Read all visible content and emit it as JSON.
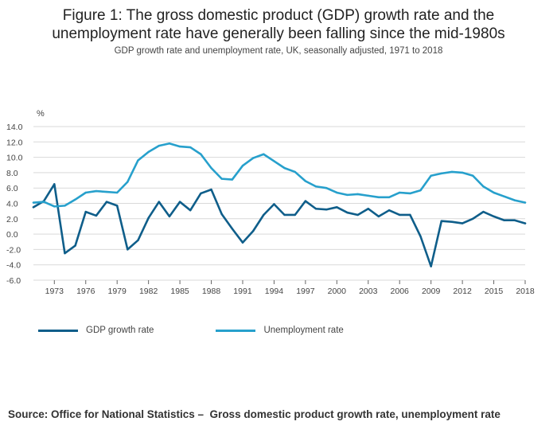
{
  "header": {
    "title_line1": "Figure 1: The gross domestic product (GDP) growth rate and the",
    "title_line2": "unemployment rate have generally been falling since the mid-1980s",
    "subtitle": "GDP growth rate and unemployment rate, UK, seasonally adjusted, 1971 to 2018"
  },
  "footer": {
    "source": "Source: Office for National Statistics –  Gross domestic product growth rate, unemployment rate"
  },
  "chart_data": {
    "type": "line",
    "title": "Figure 1: The gross domestic product (GDP) growth rate and the unemployment rate have generally been falling since the mid-1980s",
    "subtitle": "GDP growth rate and unemployment rate, UK, seasonally adjusted, 1971 to 2018",
    "ylabel": "%",
    "xlabel": "",
    "ylim": [
      -6.0,
      14.0
    ],
    "yticks": [
      -6.0,
      -4.0,
      -2.0,
      0.0,
      2.0,
      4.0,
      6.0,
      8.0,
      10.0,
      12.0,
      14.0
    ],
    "ytick_labels": [
      "-6.0",
      "-4.0",
      "-2.0",
      "0.0",
      "2.0",
      "4.0",
      "6.0",
      "8.0",
      "10.0",
      "12.0",
      "14.0"
    ],
    "xlim": [
      1971,
      2018
    ],
    "xtick_labels": [
      "1973",
      "1976",
      "1979",
      "1982",
      "1985",
      "1988",
      "1991",
      "1994",
      "1997",
      "2000",
      "2003",
      "2006",
      "2009",
      "2012",
      "2015",
      "2018"
    ],
    "grid": "horizontal",
    "legend_position": "bottom-left",
    "x": [
      1971,
      1972,
      1973,
      1974,
      1975,
      1976,
      1977,
      1978,
      1979,
      1980,
      1981,
      1982,
      1983,
      1984,
      1985,
      1986,
      1987,
      1988,
      1989,
      1990,
      1991,
      1992,
      1993,
      1994,
      1995,
      1996,
      1997,
      1998,
      1999,
      2000,
      2001,
      2002,
      2003,
      2004,
      2005,
      2006,
      2007,
      2008,
      2009,
      2010,
      2011,
      2012,
      2013,
      2014,
      2015,
      2016,
      2017,
      2018
    ],
    "series": [
      {
        "name": "GDP growth rate",
        "color": "#0f5e8a",
        "values": [
          3.5,
          4.3,
          6.5,
          -2.5,
          -1.5,
          2.9,
          2.4,
          4.2,
          3.7,
          -2.0,
          -0.8,
          2.1,
          4.2,
          2.3,
          4.2,
          3.1,
          5.3,
          5.8,
          2.6,
          0.7,
          -1.1,
          0.4,
          2.5,
          3.9,
          2.5,
          2.5,
          4.3,
          3.3,
          3.2,
          3.5,
          2.8,
          2.5,
          3.3,
          2.3,
          3.1,
          2.5,
          2.5,
          -0.3,
          -4.2,
          1.7,
          1.6,
          1.4,
          2.0,
          2.9,
          2.3,
          1.8,
          1.8,
          1.4
        ]
      },
      {
        "name": "Unemployment rate",
        "color": "#27a0cc",
        "values": [
          4.1,
          4.2,
          3.6,
          3.7,
          4.5,
          5.4,
          5.6,
          5.5,
          5.4,
          6.8,
          9.6,
          10.7,
          11.5,
          11.8,
          11.4,
          11.3,
          10.4,
          8.6,
          7.2,
          7.1,
          8.9,
          9.9,
          10.4,
          9.5,
          8.6,
          8.1,
          6.9,
          6.2,
          6.0,
          5.4,
          5.1,
          5.2,
          5.0,
          4.8,
          4.8,
          5.4,
          5.3,
          5.7,
          7.6,
          7.9,
          8.1,
          8.0,
          7.6,
          6.2,
          5.4,
          4.9,
          4.4,
          4.1
        ]
      }
    ]
  }
}
